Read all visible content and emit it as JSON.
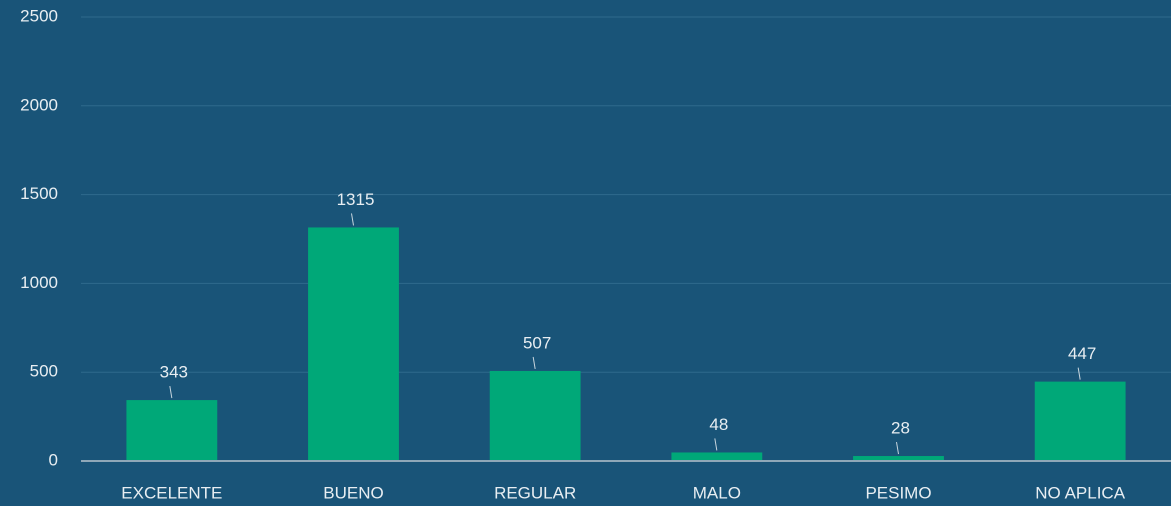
{
  "chart_data": {
    "type": "bar",
    "categories": [
      "EXCELENTE",
      "BUENO",
      "REGULAR",
      "MALO",
      "PESIMO",
      "NO APLICA"
    ],
    "values": [
      343,
      1315,
      507,
      48,
      28,
      447
    ],
    "color": "#00a878",
    "ylim": [
      0,
      2500
    ],
    "yticks": [
      0,
      500,
      1000,
      1500,
      2000,
      2500
    ],
    "grid": true
  }
}
